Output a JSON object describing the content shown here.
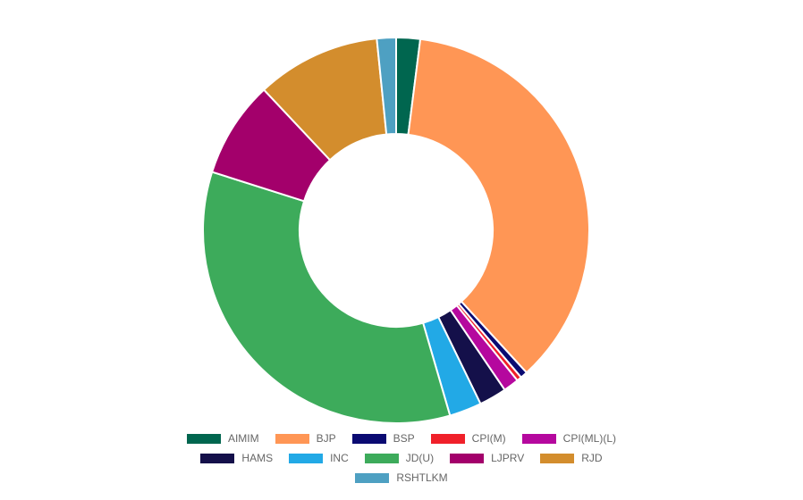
{
  "chart_data": {
    "type": "pie",
    "variant": "donut",
    "legend_position": "bottom",
    "categories": [
      "AIMIM",
      "BJP",
      "BSP",
      "CPI(M)",
      "CPI(ML)(L)",
      "HAMS",
      "INC",
      "JD(U)",
      "LJPRV",
      "RJD",
      "RSHTLKM"
    ],
    "values": [
      2.0,
      36.2,
      0.6,
      0.4,
      1.3,
      2.3,
      2.7,
      34.4,
      8.1,
      10.4,
      1.6
    ],
    "colors": [
      "#00664f",
      "#ff9655",
      "#0a0a72",
      "#f0202a",
      "#b5089e",
      "#14104a",
      "#22a9e6",
      "#3dab5b",
      "#a3006b",
      "#d38d2d",
      "#4ea0c2"
    ]
  }
}
